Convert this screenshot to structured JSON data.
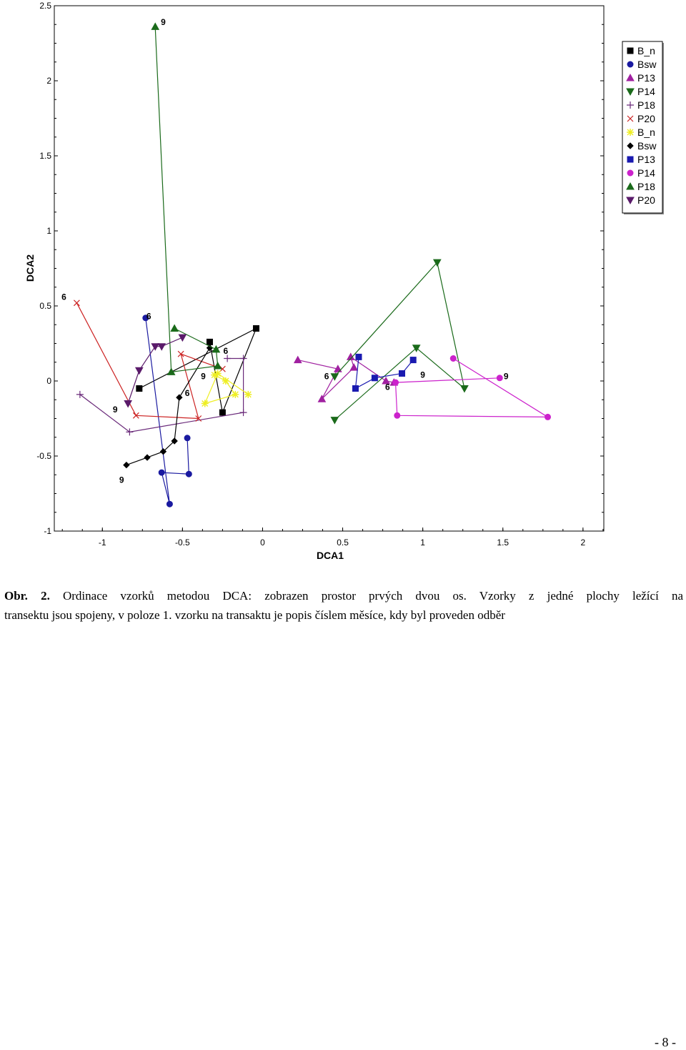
{
  "chart_data": {
    "type": "scatter",
    "xlabel": "DCA1",
    "ylabel": "DCA2",
    "xlim": [
      -1.3,
      2.13
    ],
    "ylim": [
      -1,
      2.5
    ],
    "x_ticks": [
      "-1",
      "-0.5",
      "0",
      "0.5",
      "1",
      "1.5",
      "2"
    ],
    "y_ticks": [
      "-1",
      "-0.5",
      "0",
      "0.5",
      "1",
      "1.5",
      "2",
      "2.5"
    ],
    "grid": false,
    "legend_position": "top-right",
    "series": [
      {
        "name": "B_n",
        "marker": "square",
        "color": "#000000",
        "points": [
          [
            -0.77,
            -0.05
          ],
          [
            -0.04,
            0.35
          ],
          [
            -0.25,
            -0.21
          ],
          [
            -0.33,
            0.26
          ]
        ],
        "labels": []
      },
      {
        "name": "Bsw",
        "marker": "circle",
        "color": "#1a1aa0",
        "points": [
          [
            -0.73,
            0.42
          ],
          [
            -0.58,
            -0.82
          ],
          [
            -0.63,
            -0.61
          ],
          [
            -0.46,
            -0.62
          ],
          [
            -0.47,
            -0.38
          ]
        ],
        "labels": [
          {
            "text": "6",
            "x": -0.71,
            "y": 0.43
          }
        ]
      },
      {
        "name": "P13",
        "marker": "triangle-up",
        "color": "#a020a0",
        "points": [
          [
            0.22,
            0.14
          ],
          [
            0.47,
            0.08
          ],
          [
            0.37,
            -0.12
          ],
          [
            0.57,
            0.09
          ],
          [
            0.55,
            0.16
          ],
          [
            0.77,
            0.0
          ],
          [
            0.82,
            -0.01
          ]
        ],
        "labels": [
          {
            "text": "6",
            "x": 0.4,
            "y": 0.03
          }
        ]
      },
      {
        "name": "P14",
        "marker": "triangle-down",
        "color": "#1a6a1a",
        "points": [
          [
            0.45,
            -0.26
          ],
          [
            0.96,
            0.22
          ],
          [
            1.26,
            -0.05
          ],
          [
            1.09,
            0.79
          ],
          [
            0.45,
            0.03
          ]
        ],
        "labels": [
          {
            "text": "9",
            "x": 1.0,
            "y": 0.04
          }
        ]
      },
      {
        "name": "P18",
        "marker": "plus",
        "color": "#6a2a7a",
        "points": [
          [
            -1.14,
            -0.09
          ],
          [
            -0.83,
            -0.34
          ],
          [
            -0.12,
            -0.21
          ],
          [
            -0.12,
            0.15
          ],
          [
            -0.22,
            0.15
          ]
        ],
        "labels": [
          {
            "text": "9",
            "x": -0.92,
            "y": -0.19
          }
        ]
      },
      {
        "name": "P20",
        "marker": "x",
        "color": "#cc2222",
        "points": [
          [
            -1.16,
            0.52
          ],
          [
            -0.79,
            -0.23
          ],
          [
            -0.4,
            -0.25
          ],
          [
            -0.51,
            0.18
          ],
          [
            -0.25,
            0.08
          ]
        ],
        "labels": [
          {
            "text": "6",
            "x": -1.24,
            "y": 0.56
          }
        ]
      },
      {
        "name": "B_n",
        "marker": "star",
        "color": "#eeee22",
        "points": [
          [
            -0.3,
            0.04
          ],
          [
            -0.23,
            0.0
          ],
          [
            -0.17,
            -0.09
          ],
          [
            -0.36,
            -0.15
          ],
          [
            -0.28,
            0.05
          ],
          [
            -0.09,
            -0.09
          ]
        ],
        "labels": [
          {
            "text": "9",
            "x": -0.37,
            "y": 0.03
          }
        ]
      },
      {
        "name": "Bsw",
        "marker": "diamond",
        "color": "#000000",
        "points": [
          [
            -0.85,
            -0.56
          ],
          [
            -0.72,
            -0.51
          ],
          [
            -0.62,
            -0.47
          ],
          [
            -0.55,
            -0.4
          ],
          [
            -0.52,
            -0.11
          ],
          [
            -0.33,
            0.22
          ]
        ],
        "labels": [
          {
            "text": "9",
            "x": -0.88,
            "y": -0.66
          },
          {
            "text": "6",
            "x": -0.47,
            "y": -0.08
          }
        ]
      },
      {
        "name": "P13",
        "marker": "square",
        "color": "#1a1ab0",
        "points": [
          [
            0.6,
            0.16
          ],
          [
            0.58,
            -0.05
          ],
          [
            0.7,
            0.02
          ],
          [
            0.87,
            0.05
          ],
          [
            0.94,
            0.14
          ]
        ],
        "labels": [
          {
            "text": "6",
            "x": 0.78,
            "y": -0.04
          }
        ]
      },
      {
        "name": "P14",
        "marker": "circle",
        "color": "#cc22cc",
        "points": [
          [
            1.19,
            0.15
          ],
          [
            1.78,
            -0.24
          ],
          [
            0.84,
            -0.23
          ],
          [
            0.83,
            -0.01
          ],
          [
            1.48,
            0.02
          ]
        ],
        "labels": [
          {
            "text": "9",
            "x": 1.52,
            "y": 0.03
          }
        ]
      },
      {
        "name": "P18",
        "marker": "triangle-up",
        "color": "#1a6a1a",
        "points": [
          [
            -0.67,
            2.36
          ],
          [
            -0.57,
            0.06
          ],
          [
            -0.28,
            0.1
          ],
          [
            -0.29,
            0.21
          ],
          [
            -0.55,
            0.35
          ]
        ],
        "labels": [
          {
            "text": "9",
            "x": -0.62,
            "y": 2.39
          },
          {
            "text": "6",
            "x": -0.23,
            "y": 0.2
          }
        ]
      },
      {
        "name": "P20",
        "marker": "triangle-down",
        "color": "#5a1a6a",
        "points": [
          [
            -0.84,
            -0.15
          ],
          [
            -0.77,
            0.07
          ],
          [
            -0.67,
            0.23
          ],
          [
            -0.63,
            0.23
          ],
          [
            -0.5,
            0.29
          ]
        ],
        "labels": []
      }
    ]
  },
  "caption": {
    "lead": "Obr. 2.",
    "line1": "Ordinace vzorků metodou DCA: zobrazen prostor prvých dvou os. Vzorky z jedné plochy ležící na",
    "line2": "transektu jsou spojeny, v poloze 1. vzorku na transaktu je popis číslem měsíce, kdy byl proveden odběr"
  },
  "page_number": "- 8 -"
}
